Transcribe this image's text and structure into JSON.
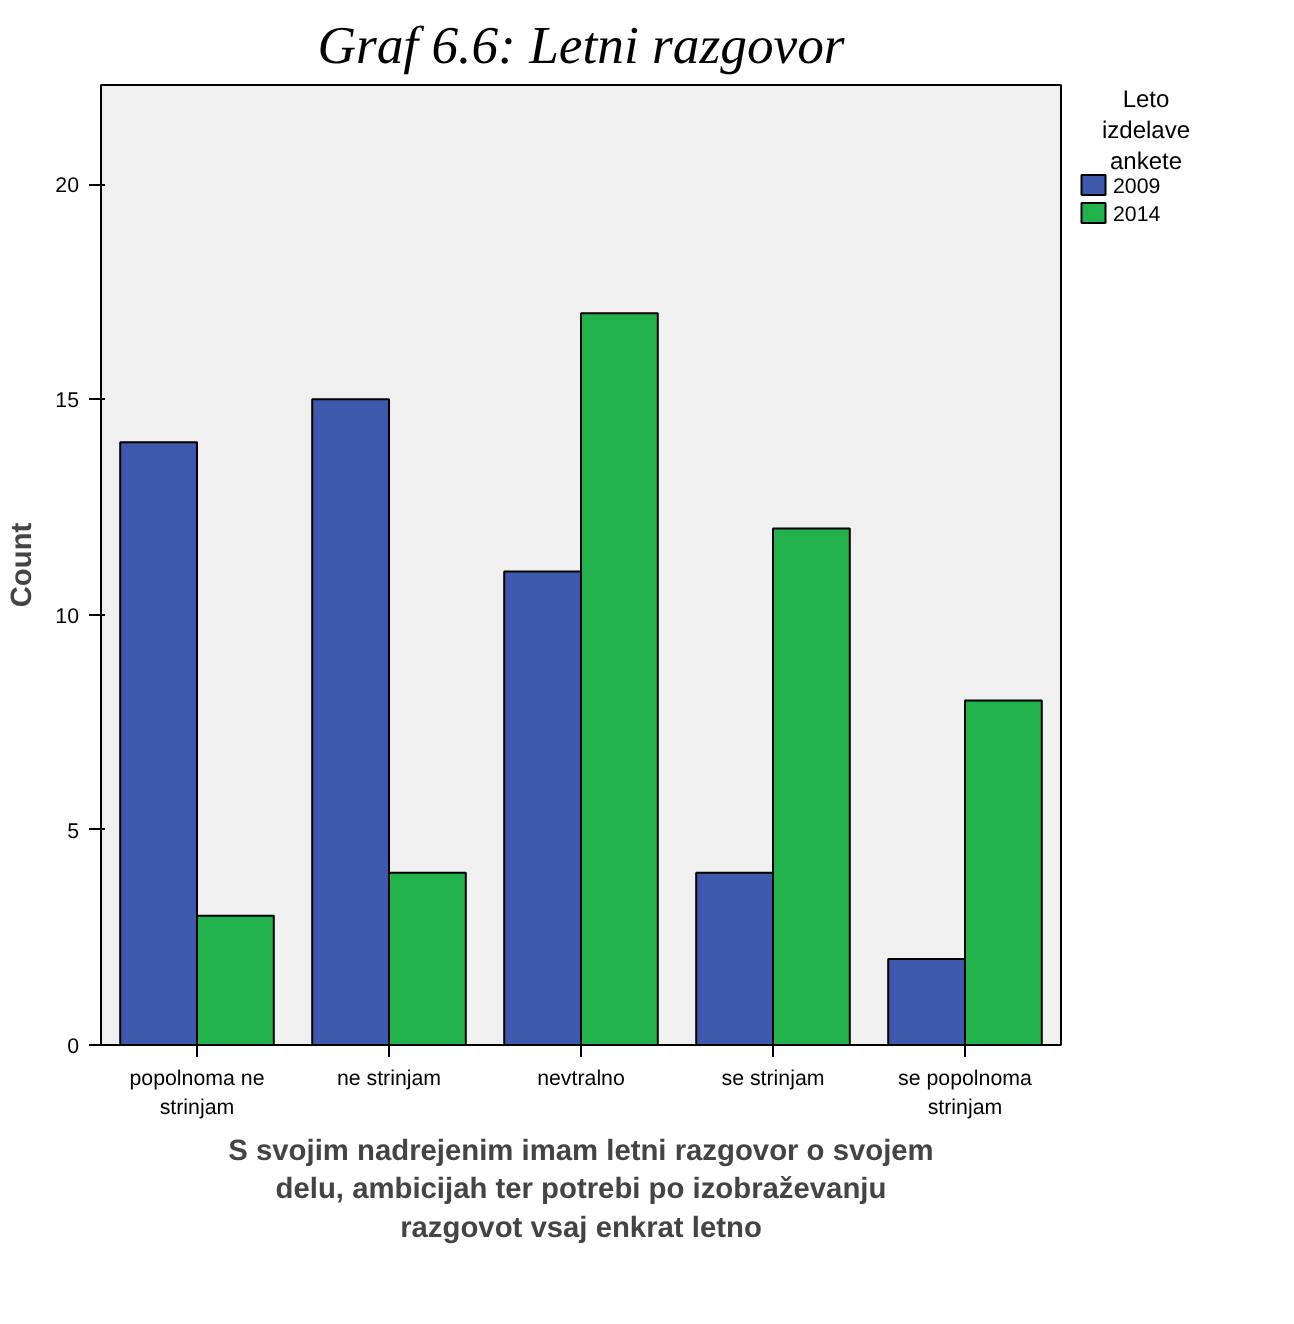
{
  "chart_data": {
    "type": "bar",
    "title": "Graf 6.6: Letni razgovor",
    "xlabel": "S svojim nadrejenim imam letni razgovor o svojem\ndelu, ambicijah ter potrebi po izobraževanju\nrazgovot vsaj enkrat letno",
    "ylabel": "Count",
    "legend_title": "Leto izdelave ankete",
    "categories": [
      "popolnoma ne\nstrinjam",
      "ne strinjam",
      "nevtralno",
      "se strinjam",
      "se popolnoma\nstrinjam"
    ],
    "series": [
      {
        "name": "2009",
        "color": "#3e58ac",
        "values": [
          14,
          15,
          11,
          4,
          2
        ]
      },
      {
        "name": "2014",
        "color": "#21b24b",
        "values": [
          3,
          4,
          17,
          12,
          8
        ]
      }
    ],
    "ylim": [
      0,
      22.3
    ],
    "yticks": [
      0,
      5,
      10,
      15,
      20
    ],
    "grid": false,
    "legend": "right"
  }
}
